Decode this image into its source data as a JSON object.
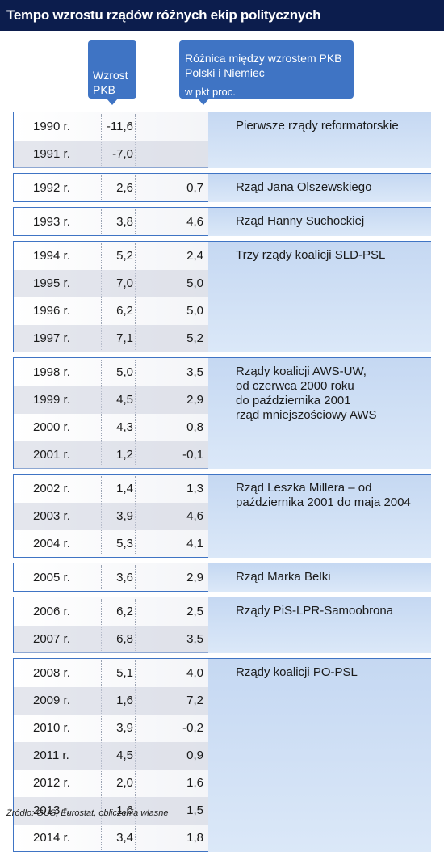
{
  "chart_data": {
    "type": "table",
    "title": "Tempo wzrostu rządów różnych ekip politycznych",
    "columns": {
      "gdp": "Wzrost PKB",
      "diff": "Różnica między wzrostem PKB Polski i Niemiec",
      "diff_unit": "w pkt proc."
    },
    "groups": [
      {
        "government": "Pierwsze rządy reformatorskie",
        "rows": [
          {
            "year": "1990 r.",
            "gdp": "-11,6",
            "diff": ""
          },
          {
            "year": "1991 r.",
            "gdp": "-7,0",
            "diff": ""
          }
        ]
      },
      {
        "government": "Rząd Jana Olszewskiego",
        "rows": [
          {
            "year": "1992 r.",
            "gdp": "2,6",
            "diff": "0,7"
          }
        ]
      },
      {
        "government": "Rząd Hanny Suchockiej",
        "rows": [
          {
            "year": "1993 r.",
            "gdp": "3,8",
            "diff": "4,6"
          }
        ]
      },
      {
        "government": "Trzy rządy koalicji SLD-PSL",
        "rows": [
          {
            "year": "1994 r.",
            "gdp": "5,2",
            "diff": "2,4"
          },
          {
            "year": "1995 r.",
            "gdp": "7,0",
            "diff": "5,0"
          },
          {
            "year": "1996 r.",
            "gdp": "6,2",
            "diff": "5,0"
          },
          {
            "year": "1997 r.",
            "gdp": "7,1",
            "diff": "5,2"
          }
        ]
      },
      {
        "government": "Rządy koalicji AWS-UW,\nod  czerwca 2000 roku\ndo października 2001\nrząd mniejszościowy AWS",
        "rows": [
          {
            "year": "1998 r.",
            "gdp": "5,0",
            "diff": "3,5"
          },
          {
            "year": "1999 r.",
            "gdp": "4,5",
            "diff": "2,9"
          },
          {
            "year": "2000 r.",
            "gdp": "4,3",
            "diff": "0,8"
          },
          {
            "year": "2001 r.",
            "gdp": "1,2",
            "diff": "-0,1"
          }
        ]
      },
      {
        "government": "Rząd Leszka Millera – od\npaździernika 2001 do maja 2004",
        "rows": [
          {
            "year": "2002 r.",
            "gdp": "1,4",
            "diff": "1,3"
          },
          {
            "year": "2003 r.",
            "gdp": "3,9",
            "diff": "4,6"
          },
          {
            "year": "2004 r.",
            "gdp": "5,3",
            "diff": "4,1"
          }
        ]
      },
      {
        "government": "Rząd Marka Belki",
        "rows": [
          {
            "year": "2005 r.",
            "gdp": "3,6",
            "diff": "2,9"
          }
        ]
      },
      {
        "government": "Rządy PiS-LPR-Samoobrona",
        "rows": [
          {
            "year": "2006 r.",
            "gdp": "6,2",
            "diff": "2,5"
          },
          {
            "year": "2007 r.",
            "gdp": "6,8",
            "diff": "3,5"
          }
        ]
      },
      {
        "government": "Rządy koalicji PO-PSL",
        "rows": [
          {
            "year": "2008 r.",
            "gdp": "5,1",
            "diff": "4,0"
          },
          {
            "year": "2009 r.",
            "gdp": "1,6",
            "diff": "7,2"
          },
          {
            "year": "2010 r.",
            "gdp": "3,9",
            "diff": "-0,2"
          },
          {
            "year": "2011 r.",
            "gdp": "4,5",
            "diff": "0,9"
          },
          {
            "year": "2012 r.",
            "gdp": "2,0",
            "diff": "1,6"
          },
          {
            "year": "2013 r.",
            "gdp": "1,6",
            "diff": "1,5"
          },
          {
            "year": "2014 r.",
            "gdp": "3,4",
            "diff": "1,8"
          }
        ]
      }
    ],
    "source": "Źródło:  GUS, Eurostat, obliczenia własne"
  },
  "colors": {
    "title_bg": "#0c1d4d",
    "accent": "#3f74c4",
    "government_bg": "#c5d8f2"
  }
}
